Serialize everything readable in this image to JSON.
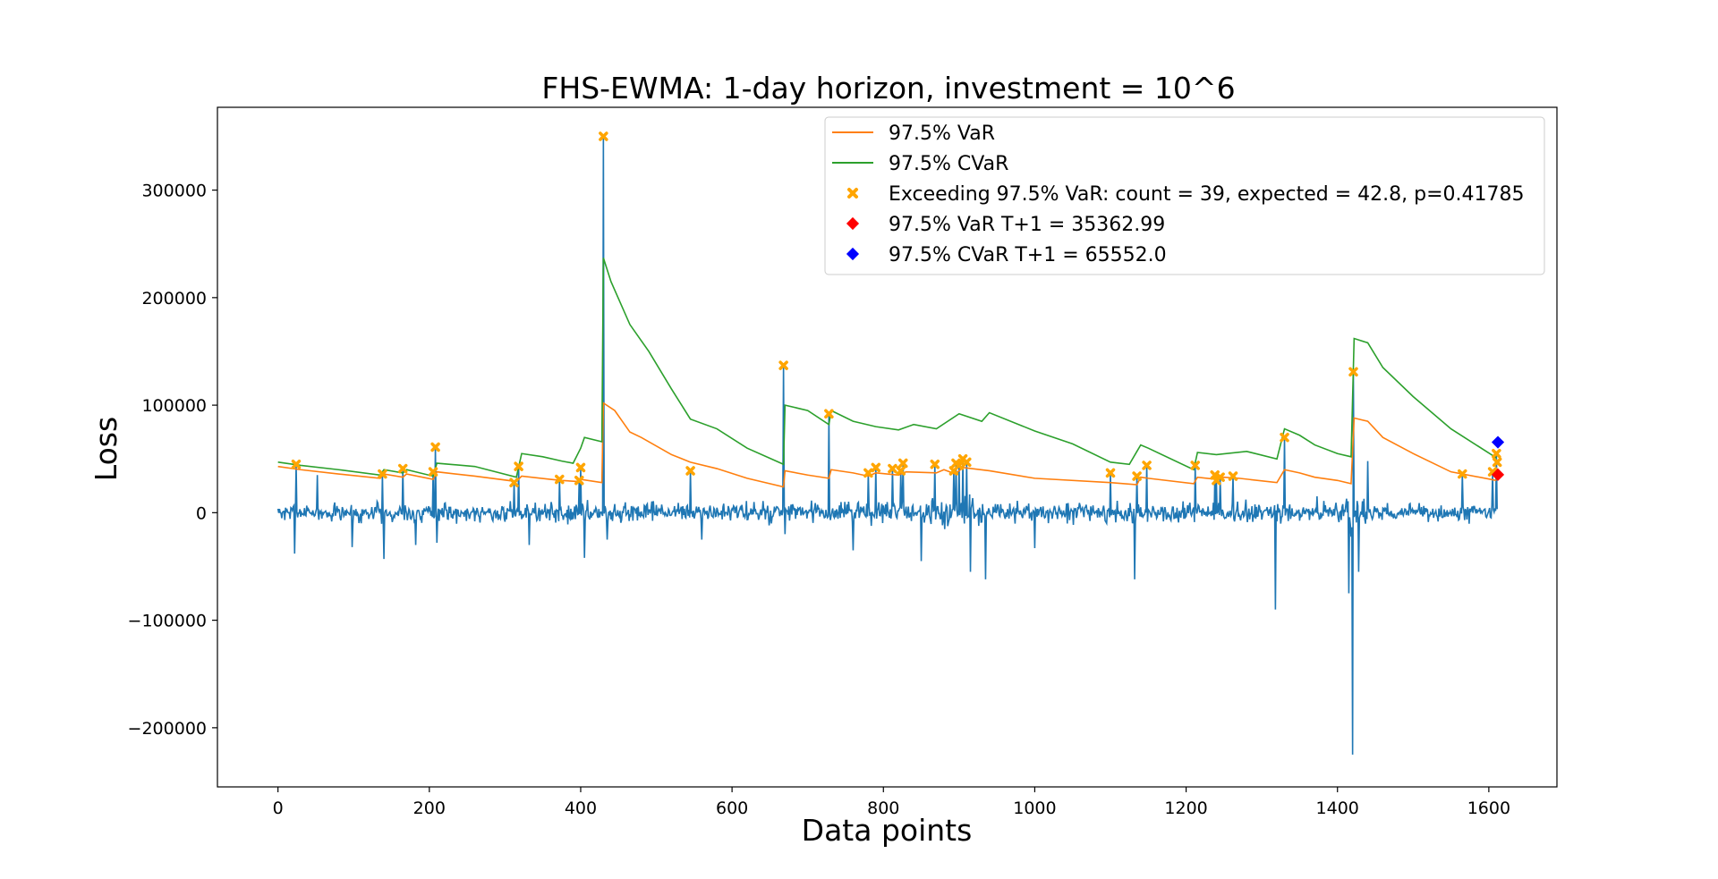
{
  "chart_data": {
    "type": "line",
    "title": "FHS-EWMA: 1-day horizon, investment = 10^6",
    "xlabel": "Data points",
    "ylabel": "Loss",
    "xlim": [
      -80,
      1690
    ],
    "ylim": [
      -255000,
      377000
    ],
    "x_ticks": [
      0,
      200,
      400,
      600,
      800,
      1000,
      1200,
      1400,
      1600
    ],
    "x_tick_labels": [
      "0",
      "200",
      "400",
      "600",
      "800",
      "1000",
      "1200",
      "1400",
      "1600"
    ],
    "y_ticks": [
      -200000,
      -100000,
      0,
      100000,
      200000,
      300000
    ],
    "y_tick_labels": [
      "−200000",
      "−100000",
      "0",
      "100000",
      "200000",
      "300000"
    ],
    "grid": false,
    "legend_position": "top-right",
    "colors": {
      "loss": "#1f77b4",
      "var": "#ff7f0e",
      "cvar": "#2ca02c",
      "exceed": "#ffa500",
      "var_t1": "#ff0000",
      "cvar_t1": "#0000ff"
    },
    "series": [
      {
        "name": "97.5% VaR",
        "points": [
          [
            0,
            43000
          ],
          [
            30,
            40000
          ],
          [
            80,
            36000
          ],
          [
            135,
            32000
          ],
          [
            140,
            36000
          ],
          [
            165,
            33000
          ],
          [
            170,
            36000
          ],
          [
            205,
            31000
          ],
          [
            210,
            38000
          ],
          [
            260,
            34000
          ],
          [
            315,
            29000
          ],
          [
            322,
            34000
          ],
          [
            360,
            31000
          ],
          [
            375,
            30000
          ],
          [
            395,
            29000
          ],
          [
            400,
            31000
          ],
          [
            428,
            28000
          ],
          [
            430,
            102000
          ],
          [
            445,
            95000
          ],
          [
            465,
            75000
          ],
          [
            480,
            70000
          ],
          [
            520,
            54000
          ],
          [
            545,
            47000
          ],
          [
            580,
            41000
          ],
          [
            620,
            32000
          ],
          [
            668,
            24000
          ],
          [
            670,
            39000
          ],
          [
            700,
            35000
          ],
          [
            728,
            32000
          ],
          [
            731,
            40000
          ],
          [
            760,
            37000
          ],
          [
            780,
            34000
          ],
          [
            790,
            37000
          ],
          [
            820,
            35000
          ],
          [
            830,
            38000
          ],
          [
            870,
            37000
          ],
          [
            880,
            40000
          ],
          [
            895,
            36000
          ],
          [
            905,
            42000
          ],
          [
            940,
            39000
          ],
          [
            1000,
            32000
          ],
          [
            1100,
            28000
          ],
          [
            1135,
            26000
          ],
          [
            1140,
            33000
          ],
          [
            1150,
            32000
          ],
          [
            1210,
            27000
          ],
          [
            1215,
            33000
          ],
          [
            1240,
            31000
          ],
          [
            1250,
            33000
          ],
          [
            1270,
            32000
          ],
          [
            1320,
            28000
          ],
          [
            1330,
            40000
          ],
          [
            1350,
            37000
          ],
          [
            1370,
            33000
          ],
          [
            1400,
            30000
          ],
          [
            1418,
            27000
          ],
          [
            1422,
            88000
          ],
          [
            1440,
            85000
          ],
          [
            1460,
            70000
          ],
          [
            1500,
            55000
          ],
          [
            1550,
            38000
          ],
          [
            1610,
            30000
          ]
        ]
      },
      {
        "name": "97.5% CVaR",
        "points": [
          [
            0,
            47000
          ],
          [
            30,
            44000
          ],
          [
            80,
            40000
          ],
          [
            135,
            35000
          ],
          [
            140,
            40000
          ],
          [
            165,
            37000
          ],
          [
            170,
            40000
          ],
          [
            205,
            34000
          ],
          [
            210,
            46000
          ],
          [
            260,
            43000
          ],
          [
            315,
            33000
          ],
          [
            322,
            55000
          ],
          [
            350,
            52000
          ],
          [
            375,
            48000
          ],
          [
            390,
            46000
          ],
          [
            400,
            60000
          ],
          [
            405,
            70000
          ],
          [
            428,
            66000
          ],
          [
            430,
            237000
          ],
          [
            440,
            215000
          ],
          [
            465,
            175000
          ],
          [
            490,
            150000
          ],
          [
            520,
            115000
          ],
          [
            545,
            87000
          ],
          [
            580,
            78000
          ],
          [
            620,
            60000
          ],
          [
            668,
            45000
          ],
          [
            670,
            100000
          ],
          [
            700,
            95000
          ],
          [
            728,
            82000
          ],
          [
            731,
            95000
          ],
          [
            760,
            85000
          ],
          [
            790,
            80000
          ],
          [
            820,
            77000
          ],
          [
            840,
            82000
          ],
          [
            870,
            78000
          ],
          [
            900,
            92000
          ],
          [
            930,
            85000
          ],
          [
            940,
            93000
          ],
          [
            1000,
            76000
          ],
          [
            1050,
            64000
          ],
          [
            1100,
            47000
          ],
          [
            1125,
            45000
          ],
          [
            1135,
            57000
          ],
          [
            1140,
            63000
          ],
          [
            1150,
            60000
          ],
          [
            1210,
            40000
          ],
          [
            1215,
            56000
          ],
          [
            1240,
            54000
          ],
          [
            1280,
            57000
          ],
          [
            1320,
            50000
          ],
          [
            1330,
            78000
          ],
          [
            1350,
            72000
          ],
          [
            1370,
            63000
          ],
          [
            1400,
            55000
          ],
          [
            1418,
            52000
          ],
          [
            1422,
            162000
          ],
          [
            1440,
            158000
          ],
          [
            1460,
            135000
          ],
          [
            1500,
            108000
          ],
          [
            1550,
            78000
          ],
          [
            1610,
            51000
          ]
        ]
      }
    ],
    "loss_series": {
      "name": "Loss",
      "n": 1612,
      "sigma": 11000,
      "seed": 7,
      "spikes": [
        [
          22,
          -38000
        ],
        [
          24,
          45000
        ],
        [
          52,
          35000
        ],
        [
          98,
          -32000
        ],
        [
          138,
          36000
        ],
        [
          140,
          -43000
        ],
        [
          165,
          41000
        ],
        [
          182,
          -30000
        ],
        [
          205,
          38000
        ],
        [
          208,
          61000
        ],
        [
          210,
          -28000
        ],
        [
          312,
          28000
        ],
        [
          318,
          43000
        ],
        [
          332,
          -30000
        ],
        [
          372,
          31000
        ],
        [
          398,
          30000
        ],
        [
          400,
          42000
        ],
        [
          405,
          -42000
        ],
        [
          430,
          350000
        ],
        [
          435,
          -25000
        ],
        [
          545,
          39000
        ],
        [
          560,
          -25000
        ],
        [
          668,
          137000
        ],
        [
          670,
          -20000
        ],
        [
          728,
          92000
        ],
        [
          760,
          -35000
        ],
        [
          780,
          37000
        ],
        [
          790,
          42000
        ],
        [
          812,
          41000
        ],
        [
          823,
          39000
        ],
        [
          826,
          46000
        ],
        [
          850,
          -45000
        ],
        [
          868,
          45000
        ],
        [
          893,
          39000
        ],
        [
          896,
          46000
        ],
        [
          900,
          44000
        ],
        [
          905,
          50000
        ],
        [
          910,
          47000
        ],
        [
          915,
          -55000
        ],
        [
          935,
          -62000
        ],
        [
          1000,
          -33000
        ],
        [
          1100,
          37000
        ],
        [
          1132,
          -62000
        ],
        [
          1135,
          34000
        ],
        [
          1148,
          44000
        ],
        [
          1212,
          44000
        ],
        [
          1238,
          35000
        ],
        [
          1240,
          30000
        ],
        [
          1245,
          33000
        ],
        [
          1262,
          34000
        ],
        [
          1318,
          -90000
        ],
        [
          1330,
          70000
        ],
        [
          1415,
          -75000
        ],
        [
          1420,
          -225000
        ],
        [
          1421,
          131000
        ],
        [
          1428,
          -55000
        ],
        [
          1440,
          48000
        ],
        [
          1565,
          36000
        ],
        [
          1605,
          38000
        ],
        [
          1610,
          55000
        ]
      ]
    },
    "exceed_points": {
      "name": "Exceeding 97.5% VaR: count = 39, expected = 42.8, p=0.41785",
      "points": [
        [
          24,
          45000
        ],
        [
          138,
          36000
        ],
        [
          165,
          41000
        ],
        [
          205,
          38000
        ],
        [
          208,
          61000
        ],
        [
          312,
          28000
        ],
        [
          318,
          43000
        ],
        [
          372,
          31000
        ],
        [
          398,
          30000
        ],
        [
          400,
          42000
        ],
        [
          430,
          350000
        ],
        [
          545,
          39000
        ],
        [
          668,
          137000
        ],
        [
          728,
          92000
        ],
        [
          780,
          37000
        ],
        [
          790,
          42000
        ],
        [
          812,
          41000
        ],
        [
          823,
          39000
        ],
        [
          826,
          46000
        ],
        [
          868,
          45000
        ],
        [
          893,
          39000
        ],
        [
          896,
          46000
        ],
        [
          900,
          44000
        ],
        [
          905,
          50000
        ],
        [
          910,
          47000
        ],
        [
          1100,
          37000
        ],
        [
          1135,
          34000
        ],
        [
          1148,
          44000
        ],
        [
          1212,
          44000
        ],
        [
          1238,
          35000
        ],
        [
          1240,
          30000
        ],
        [
          1245,
          33000
        ],
        [
          1262,
          34000
        ],
        [
          1330,
          70000
        ],
        [
          1421,
          131000
        ],
        [
          1565,
          36000
        ],
        [
          1605,
          38000
        ],
        [
          1610,
          55000
        ],
        [
          1611,
          47000
        ]
      ]
    },
    "var_t1": {
      "name": "97.5% VaR T+1 = 35362.99",
      "x": 1612,
      "y": 35362.99
    },
    "cvar_t1": {
      "name": "97.5% CVaR T+1 = 65552.0",
      "x": 1612,
      "y": 65552.0
    }
  }
}
